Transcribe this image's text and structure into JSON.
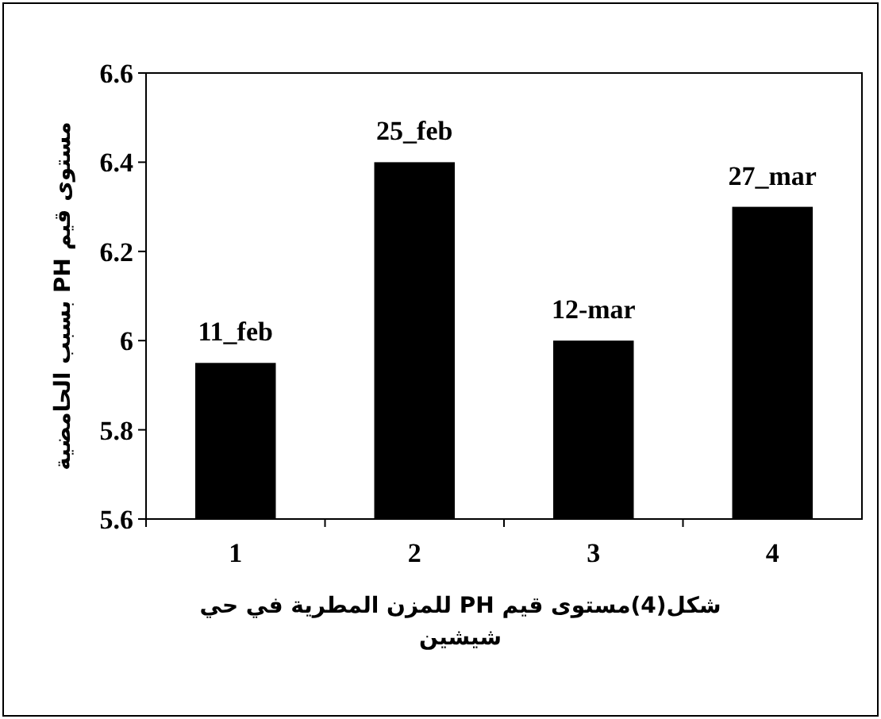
{
  "chart_data": {
    "type": "bar",
    "categories": [
      "1",
      "2",
      "3",
      "4"
    ],
    "values": [
      5.95,
      6.4,
      6.0,
      6.3
    ],
    "color": "#000000",
    "ylim": [
      5.6,
      6.6
    ],
    "yticks": [
      5.6,
      5.8,
      6,
      6.2,
      6.4,
      6.6
    ],
    "ylabel": "مستوى قيم PH بسبب الحامضية",
    "xlabel": "شكل(4)مستوى قيم PH للمزن المطرية في حي شيشين",
    "annotations": [
      {
        "text": "11_feb",
        "x": "1",
        "y": 5.95
      },
      {
        "text": "25_feb",
        "x": "2",
        "y": 6.4
      },
      {
        "text": "12-mar",
        "x": "3",
        "y": 6.0
      },
      {
        "text": "27_mar",
        "x": "4",
        "y": 6.3
      }
    ]
  }
}
